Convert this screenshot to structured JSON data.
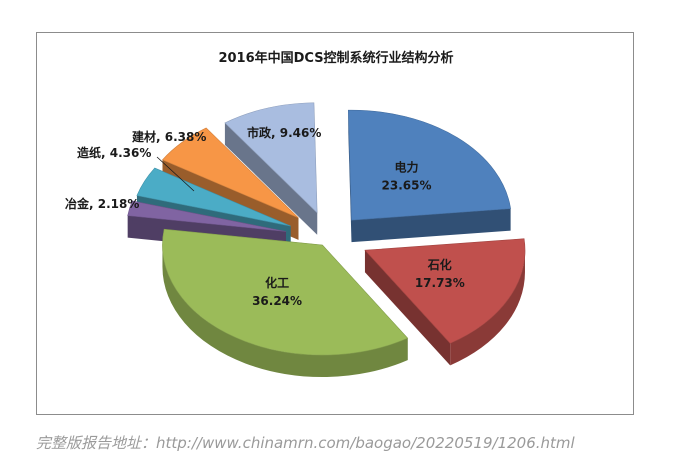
{
  "chart_data": {
    "type": "pie",
    "title": "2016年中国DCS控制系统行业结构分析",
    "categories": [
      "电力",
      "石化",
      "化工",
      "冶金",
      "造纸",
      "建材",
      "市政"
    ],
    "values": [
      23.65,
      17.73,
      36.24,
      2.18,
      4.36,
      6.38,
      9.46
    ],
    "value_labels": [
      "23.65%",
      "17.73%",
      "36.24%",
      "2.18%",
      "4.36%",
      "6.38%",
      "9.46%"
    ],
    "colors": [
      "#4f81bd",
      "#c0504d",
      "#9bbb59",
      "#8064a2",
      "#4bacc6",
      "#f79646",
      "#a9bde0"
    ],
    "exploded": true,
    "three_d": true,
    "legend": "none"
  },
  "footer": {
    "source_text": "完整版报告地址：http://www.chinamrn.com/baogao/20220519/1206.html"
  }
}
